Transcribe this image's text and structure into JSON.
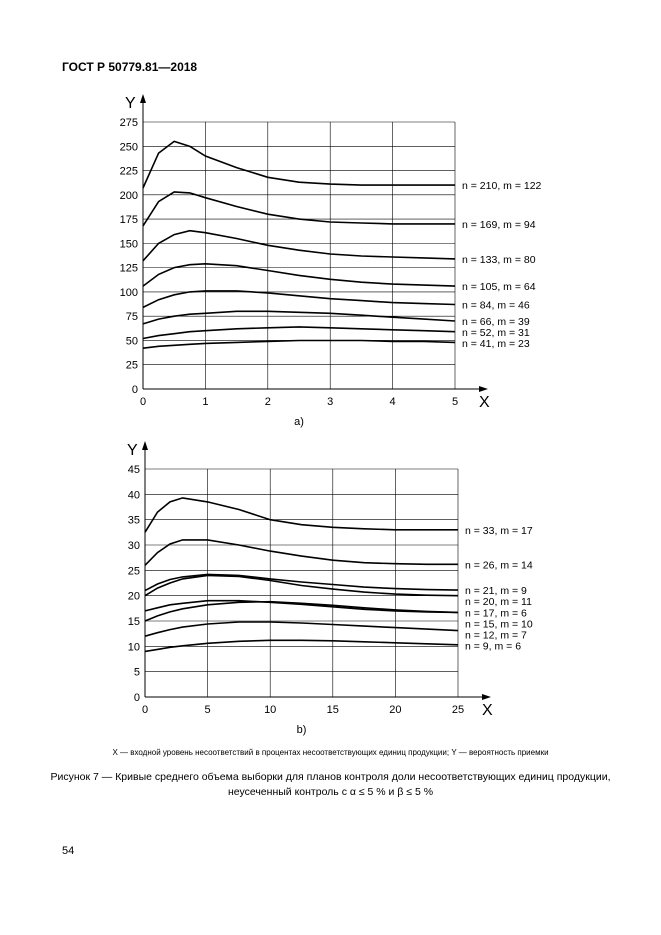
{
  "header": "ГОСТ Р 50779.81—2018",
  "chart_data": [
    {
      "type": "line",
      "sub_label": "a)",
      "x_label": "X",
      "y_label": "Y",
      "grid": true,
      "x": [
        0,
        0.25,
        0.5,
        0.75,
        1,
        1.5,
        2,
        2.5,
        3,
        3.5,
        4,
        4.5,
        5
      ],
      "xlim": [
        0,
        5
      ],
      "xticks": [
        0,
        1,
        2,
        3,
        4,
        5
      ],
      "ylim": [
        0,
        275
      ],
      "yticks": [
        0,
        25,
        50,
        75,
        100,
        125,
        150,
        175,
        200,
        225,
        250,
        275
      ],
      "series": [
        {
          "name": "n = 210, m = 122",
          "color": "#000000",
          "values": [
            207,
            243,
            255,
            250,
            240,
            228,
            218,
            213,
            211,
            210,
            210,
            210,
            210
          ]
        },
        {
          "name": "n = 169, m = 94",
          "color": "#000000",
          "values": [
            168,
            193,
            203,
            202,
            197,
            188,
            180,
            175,
            172,
            171,
            170,
            170,
            170
          ]
        },
        {
          "name": "n = 133, m = 80",
          "color": "#000000",
          "values": [
            132,
            150,
            159,
            163,
            161,
            155,
            148,
            143,
            139,
            137,
            136,
            135,
            134
          ]
        },
        {
          "name": "n = 105, m = 64",
          "color": "#000000",
          "values": [
            106,
            118,
            125,
            128,
            129,
            127,
            122,
            117,
            113,
            110,
            108,
            107,
            106
          ]
        },
        {
          "name": "n = 84, m = 46",
          "color": "#000000",
          "values": [
            84,
            92,
            97,
            100,
            101,
            101,
            99,
            96,
            93,
            91,
            89,
            88,
            87
          ]
        },
        {
          "name": "n = 66, m = 39",
          "color": "#000000",
          "values": [
            67,
            72,
            75,
            77,
            78,
            80,
            80,
            79,
            78,
            76,
            74,
            72,
            70
          ]
        },
        {
          "name": "n = 52, m = 31",
          "color": "#000000",
          "values": [
            52,
            55,
            57,
            59,
            60,
            62,
            63,
            64,
            63,
            62,
            61,
            60,
            59
          ]
        },
        {
          "name": "n = 41, m = 23",
          "color": "#000000",
          "values": [
            42,
            44,
            45,
            46,
            47,
            48,
            49,
            50,
            50,
            50,
            49,
            49,
            48
          ]
        }
      ]
    },
    {
      "type": "line",
      "sub_label": "b)",
      "x_label": "X",
      "y_label": "Y",
      "grid": true,
      "x": [
        0,
        1,
        2,
        3,
        5,
        7.5,
        10,
        12.5,
        15,
        17.5,
        20,
        22.5,
        25
      ],
      "xlim": [
        0,
        25
      ],
      "xticks": [
        0,
        5,
        10,
        15,
        20,
        25
      ],
      "ylim": [
        0,
        45
      ],
      "yticks": [
        0,
        5,
        10,
        15,
        20,
        25,
        30,
        35,
        40,
        45
      ],
      "series": [
        {
          "name": "n = 33, m = 17",
          "color": "#000000",
          "values": [
            32.5,
            36.5,
            38.5,
            39.3,
            38.5,
            37,
            35,
            34,
            33.5,
            33.2,
            33,
            33,
            33
          ]
        },
        {
          "name": "n = 26, m = 14",
          "color": "#000000",
          "values": [
            26,
            28.5,
            30.2,
            31,
            31,
            30,
            28.8,
            27.8,
            27,
            26.5,
            26.3,
            26.2,
            26.2
          ]
        },
        {
          "name": "n = 21, m = 9",
          "color": "#000000",
          "values": [
            21,
            22.3,
            23.2,
            23.7,
            24.2,
            24,
            23.3,
            22.7,
            22.2,
            21.7,
            21.4,
            21.2,
            21.1
          ]
        },
        {
          "name": "n = 20, m = 11",
          "color": "#000000",
          "values": [
            20,
            21.5,
            22.5,
            23.3,
            24,
            23.8,
            23,
            22,
            21.3,
            20.7,
            20.3,
            20.1,
            20
          ]
        },
        {
          "name": "n = 17, m = 6",
          "color": "#000000",
          "values": [
            17,
            17.6,
            18.2,
            18.5,
            19,
            19,
            18.7,
            18.3,
            17.8,
            17.3,
            17,
            16.8,
            16.7
          ]
        },
        {
          "name": "n = 15, m = 10",
          "color": "#000000",
          "values": [
            15,
            16,
            16.8,
            17.4,
            18.2,
            18.7,
            18.8,
            18.5,
            18.1,
            17.6,
            17.2,
            16.9,
            16.7
          ]
        },
        {
          "name": "n = 12, m = 7",
          "color": "#000000",
          "values": [
            12,
            12.7,
            13.3,
            13.8,
            14.4,
            14.8,
            14.8,
            14.6,
            14.3,
            14,
            13.7,
            13.4,
            13.1
          ]
        },
        {
          "name": "n = 9, m = 6",
          "color": "#000000",
          "values": [
            9,
            9.4,
            9.8,
            10.1,
            10.6,
            11,
            11.2,
            11.2,
            11.1,
            10.9,
            10.7,
            10.5,
            10.3
          ]
        }
      ]
    }
  ],
  "note": "X — входной уровень несоответствий в процентах несоответствующих единиц продукции; Y — вероятность приемки",
  "caption": [
    "Рисунок 7 — Кривые среднего объема выборки для планов контроля доли несоответствующих единиц продукции,",
    "неусеченный контроль с α ≤ 5 % и β ≤ 5 %"
  ],
  "page_number": "54"
}
